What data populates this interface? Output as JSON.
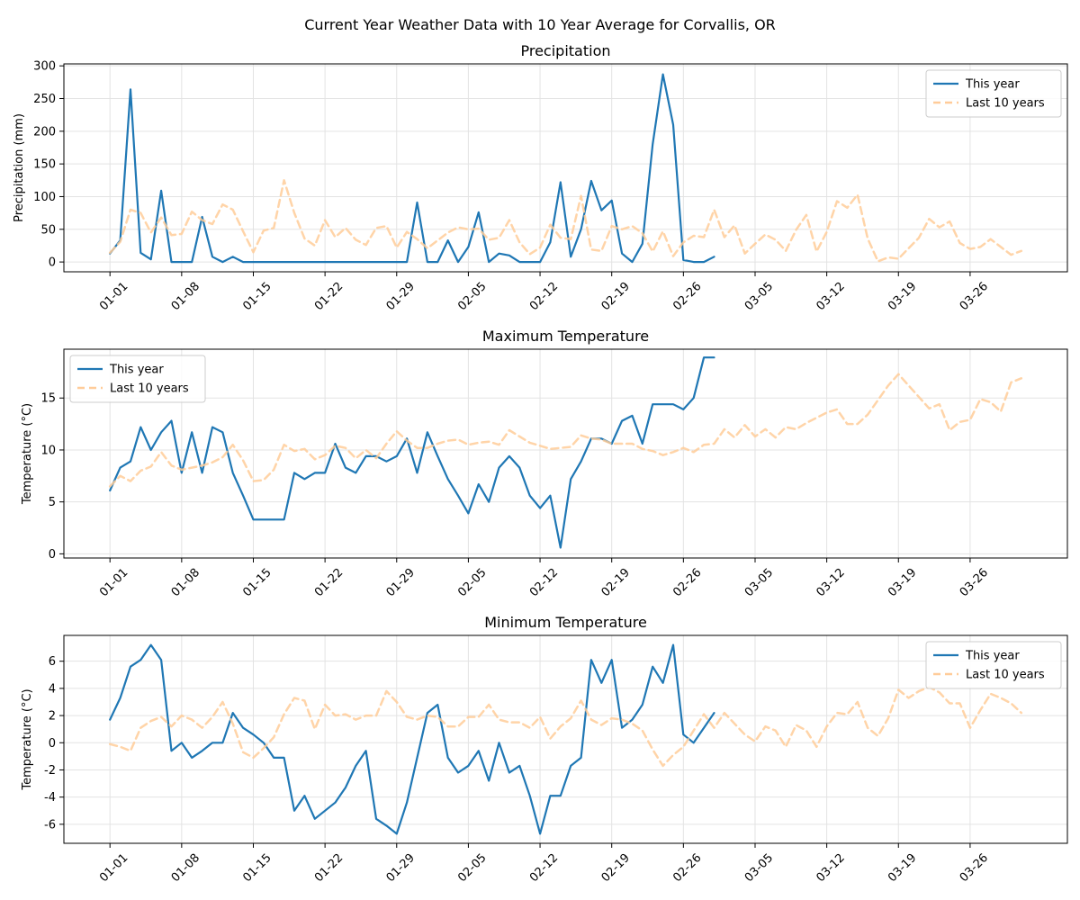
{
  "figure_title": "Current Year Weather Data with 10 Year Average for Corvallis, OR",
  "colors": {
    "this_year": "#1f77b4",
    "last_10_years": "#ffcc99"
  },
  "chart_data": [
    {
      "type": "line",
      "title": "Precipitation",
      "ylabel": "Precipitation (mm)",
      "xlabel": "",
      "x_start": "01-01",
      "x_ticks": [
        "01-01",
        "01-08",
        "01-15",
        "01-22",
        "01-29",
        "02-05",
        "02-12",
        "02-19",
        "02-26",
        "03-05",
        "03-12",
        "03-19",
        "03-26"
      ],
      "ylim": [
        -15,
        303
      ],
      "y_ticks": [
        0,
        50,
        100,
        150,
        200,
        250,
        300
      ],
      "legend": "top-right",
      "grid": true,
      "series": [
        {
          "name": "This year",
          "style": "solid",
          "values": [
            13,
            33,
            264,
            14,
            4,
            109,
            0,
            0,
            0,
            69,
            8,
            0,
            8,
            0,
            0,
            0,
            0,
            0,
            0,
            0,
            0,
            0,
            0,
            0,
            0,
            0,
            0,
            0,
            0,
            0,
            91,
            0,
            0,
            33,
            0,
            23,
            76,
            0,
            13,
            10,
            0,
            0,
            0,
            30,
            122,
            8,
            50,
            124,
            79,
            94,
            13,
            0,
            28,
            180,
            287,
            210,
            3,
            0,
            0,
            8
          ]
        },
        {
          "name": "Last 10 years",
          "style": "dashed",
          "values": [
            14,
            31,
            80,
            75,
            45,
            68,
            41,
            43,
            77,
            64,
            58,
            88,
            80,
            47,
            15,
            48,
            52,
            125,
            75,
            36,
            25,
            64,
            38,
            52,
            34,
            26,
            52,
            55,
            22,
            46,
            35,
            21,
            33,
            45,
            53,
            50,
            51,
            34,
            37,
            64,
            30,
            12,
            22,
            57,
            37,
            35,
            101,
            19,
            17,
            55,
            50,
            55,
            44,
            16,
            47,
            9,
            30,
            40,
            38,
            80,
            38,
            56,
            13,
            28,
            42,
            34,
            17,
            49,
            72,
            16,
            46,
            93,
            83,
            103,
            36,
            1,
            7,
            5,
            21,
            37,
            66,
            53,
            62,
            29,
            20,
            23,
            35,
            23,
            11,
            17
          ]
        }
      ]
    },
    {
      "type": "line",
      "title": "Maximum Temperature",
      "ylabel": "Temperature (°C)",
      "xlabel": "",
      "x_start": "01-01",
      "x_ticks": [
        "01-01",
        "01-08",
        "01-15",
        "01-22",
        "01-29",
        "02-05",
        "02-12",
        "02-19",
        "02-26",
        "03-05",
        "03-12",
        "03-19",
        "03-26"
      ],
      "ylim": [
        -0.4,
        19.7
      ],
      "y_ticks": [
        0,
        5,
        10,
        15
      ],
      "legend": "top-left",
      "grid": true,
      "series": [
        {
          "name": "This year",
          "style": "solid",
          "values": [
            6.1,
            8.3,
            8.9,
            12.2,
            10.0,
            11.7,
            12.8,
            7.8,
            11.7,
            7.8,
            12.2,
            11.7,
            7.8,
            5.6,
            3.3,
            3.3,
            3.3,
            3.3,
            7.8,
            7.2,
            7.8,
            7.8,
            10.6,
            8.3,
            7.8,
            9.4,
            9.4,
            8.9,
            9.4,
            11.1,
            7.8,
            11.7,
            9.4,
            7.2,
            5.6,
            3.9,
            6.7,
            5.0,
            8.3,
            9.4,
            8.3,
            5.6,
            4.4,
            5.6,
            0.6,
            7.2,
            8.9,
            11.1,
            11.1,
            10.6,
            12.8,
            13.3,
            10.6,
            14.4,
            14.4,
            14.4,
            13.9,
            15.0,
            18.9,
            18.9
          ]
        },
        {
          "name": "Last 10 years",
          "style": "dashed",
          "values": [
            6.5,
            7.5,
            7.0,
            8.0,
            8.4,
            9.8,
            8.5,
            8.1,
            8.3,
            8.5,
            8.8,
            9.3,
            10.5,
            9.0,
            7.0,
            7.1,
            8.1,
            10.5,
            9.9,
            10.1,
            9.1,
            9.5,
            10.4,
            10.2,
            9.2,
            10.0,
            9.2,
            10.6,
            11.8,
            10.9,
            10.2,
            10.2,
            10.6,
            10.9,
            11.0,
            10.5,
            10.7,
            10.8,
            10.5,
            11.9,
            11.3,
            10.7,
            10.4,
            10.1,
            10.2,
            10.3,
            11.4,
            11.1,
            11.0,
            10.6,
            10.6,
            10.6,
            10.1,
            9.9,
            9.5,
            9.8,
            10.2,
            9.8,
            10.5,
            10.6,
            12.0,
            11.2,
            12.4,
            11.3,
            12.0,
            11.2,
            12.2,
            12.0,
            12.6,
            13.1,
            13.6,
            13.9,
            12.5,
            12.5,
            13.4,
            14.8,
            16.2,
            17.3,
            16.2,
            15.1,
            14.0,
            14.4,
            11.9,
            12.7,
            12.9,
            14.9,
            14.6,
            13.7,
            16.5,
            16.9
          ]
        }
      ]
    },
    {
      "type": "line",
      "title": "Minimum Temperature",
      "ylabel": "Temperature (°C)",
      "xlabel": "",
      "x_start": "01-01",
      "x_ticks": [
        "01-01",
        "01-08",
        "01-15",
        "01-22",
        "01-29",
        "02-05",
        "02-12",
        "02-19",
        "02-26",
        "03-05",
        "03-12",
        "03-19",
        "03-26"
      ],
      "ylim": [
        -7.4,
        7.9
      ],
      "y_ticks": [
        -6,
        -4,
        -2,
        0,
        2,
        4,
        6
      ],
      "legend": "top-right",
      "grid": true,
      "series": [
        {
          "name": "This year",
          "style": "solid",
          "values": [
            1.7,
            3.3,
            5.6,
            6.1,
            7.2,
            6.1,
            -0.6,
            0.0,
            -1.1,
            -0.6,
            0.0,
            0.0,
            2.2,
            1.1,
            0.6,
            0.0,
            -1.1,
            -1.1,
            -5.0,
            -3.9,
            -5.6,
            -5.0,
            -4.4,
            -3.3,
            -1.7,
            -0.6,
            -5.6,
            -6.1,
            -6.7,
            -4.4,
            -1.1,
            2.2,
            2.8,
            -1.1,
            -2.2,
            -1.7,
            -0.6,
            -2.8,
            0.0,
            -2.2,
            -1.7,
            -3.9,
            -6.7,
            -3.9,
            -3.9,
            -1.7,
            -1.1,
            6.1,
            4.4,
            6.1,
            1.1,
            1.7,
            2.8,
            5.6,
            4.4,
            7.2,
            0.6,
            0.0,
            1.1,
            2.2
          ]
        },
        {
          "name": "Last 10 years",
          "style": "dashed",
          "values": [
            -0.1,
            -0.3,
            -0.6,
            1.1,
            1.6,
            1.9,
            1.2,
            2.0,
            1.7,
            1.1,
            1.9,
            3.0,
            1.4,
            -0.7,
            -1.1,
            -0.4,
            0.4,
            2.1,
            3.3,
            3.1,
            1.0,
            2.8,
            2.0,
            2.1,
            1.7,
            2.0,
            2.0,
            3.8,
            3.0,
            1.9,
            1.7,
            2.0,
            1.9,
            1.2,
            1.2,
            1.9,
            1.9,
            2.8,
            1.7,
            1.5,
            1.5,
            1.1,
            1.9,
            0.3,
            1.2,
            1.8,
            3.1,
            1.7,
            1.3,
            1.8,
            1.7,
            1.4,
            0.9,
            -0.5,
            -1.7,
            -0.9,
            -0.3,
            0.9,
            2.1,
            1.1,
            2.2,
            1.4,
            0.6,
            0.1,
            1.2,
            0.9,
            -0.3,
            1.3,
            0.9,
            -0.3,
            1.2,
            2.2,
            2.1,
            3.0,
            1.1,
            0.5,
            1.8,
            3.9,
            3.3,
            3.8,
            4.1,
            3.7,
            2.9,
            2.9,
            1.1,
            2.4,
            3.6,
            3.3,
            2.9,
            2.2
          ]
        }
      ]
    }
  ]
}
